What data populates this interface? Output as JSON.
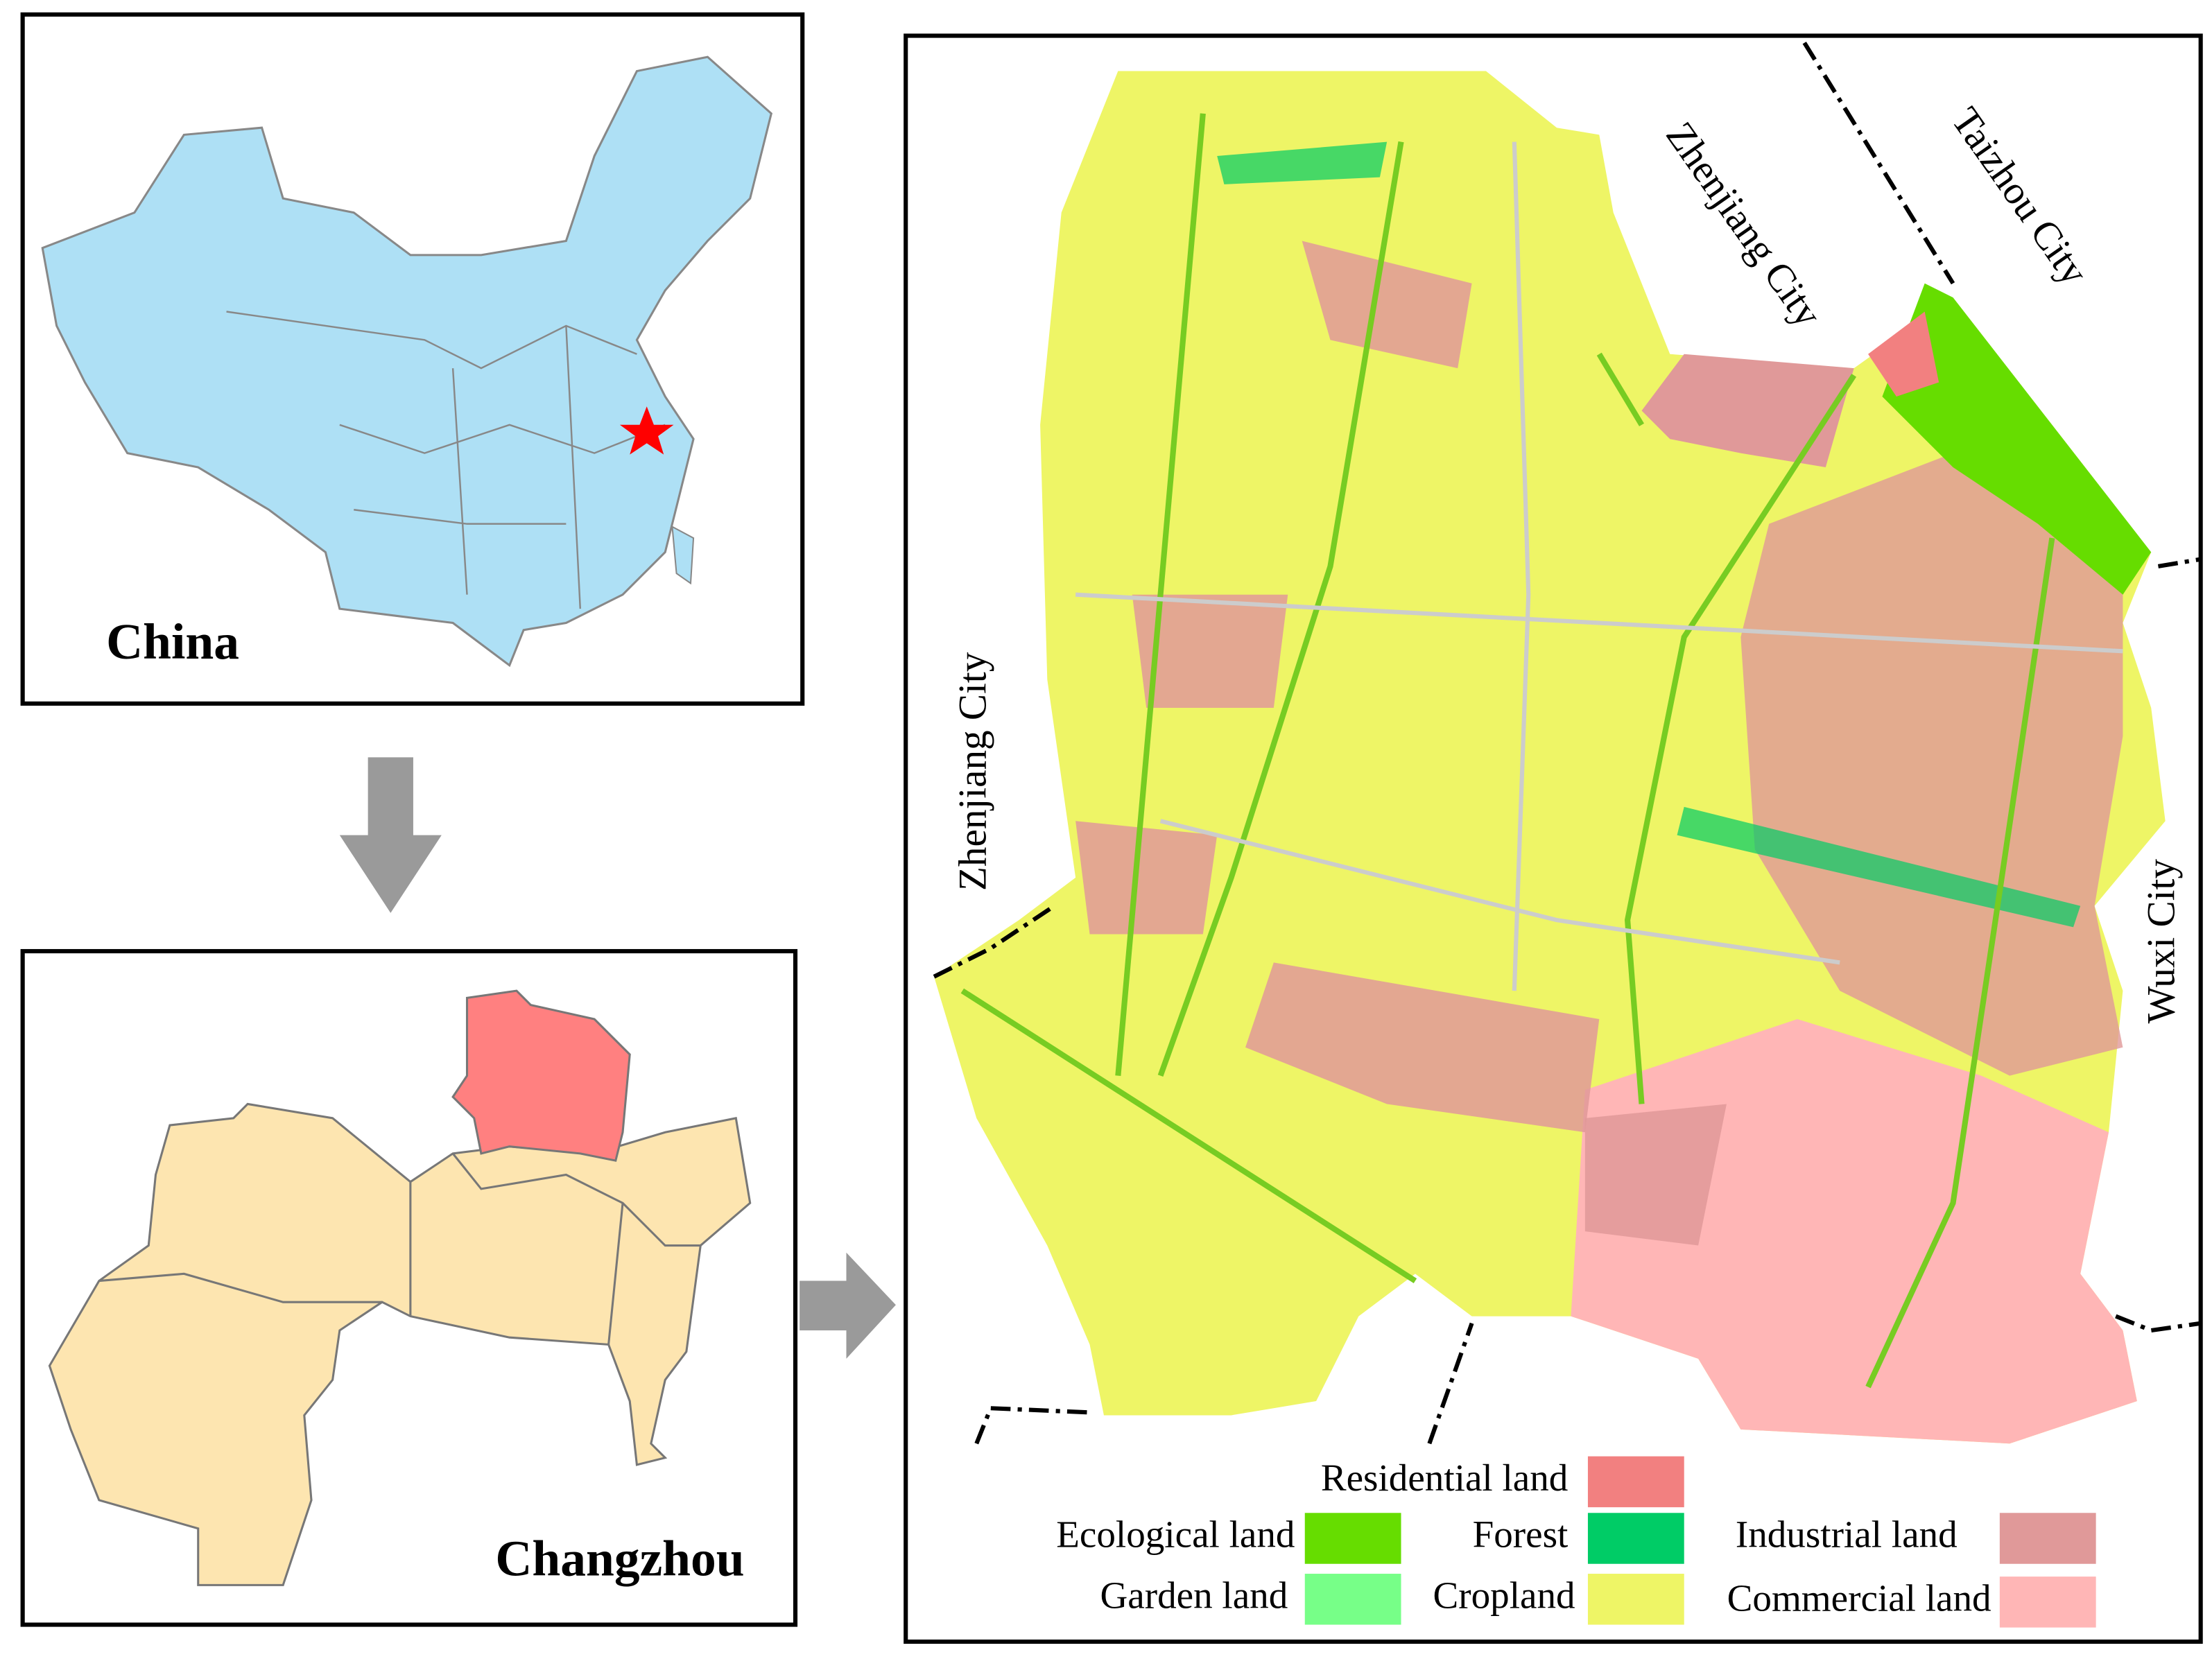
{
  "panels": {
    "china": {
      "label": "China"
    },
    "changzhou": {
      "label": "Changzhou"
    }
  },
  "map": {
    "city_labels": [
      "Zhenjiang City",
      "Zhenjiang City",
      "Taizhou City",
      "Wuxi City"
    ],
    "legend": {
      "items": [
        {
          "label": "Residential land",
          "color": "#f28080"
        },
        {
          "label": "Ecological land",
          "color": "#66dd00"
        },
        {
          "label": "Forest",
          "color": "#00cc66"
        },
        {
          "label": "Industrial land",
          "color": "#e09999"
        },
        {
          "label": "Garden land",
          "color": "#77ff88"
        },
        {
          "label": "Cropland",
          "color": "#eef566"
        },
        {
          "label": "Commercial land",
          "color": "#ffb6b6"
        }
      ]
    }
  }
}
